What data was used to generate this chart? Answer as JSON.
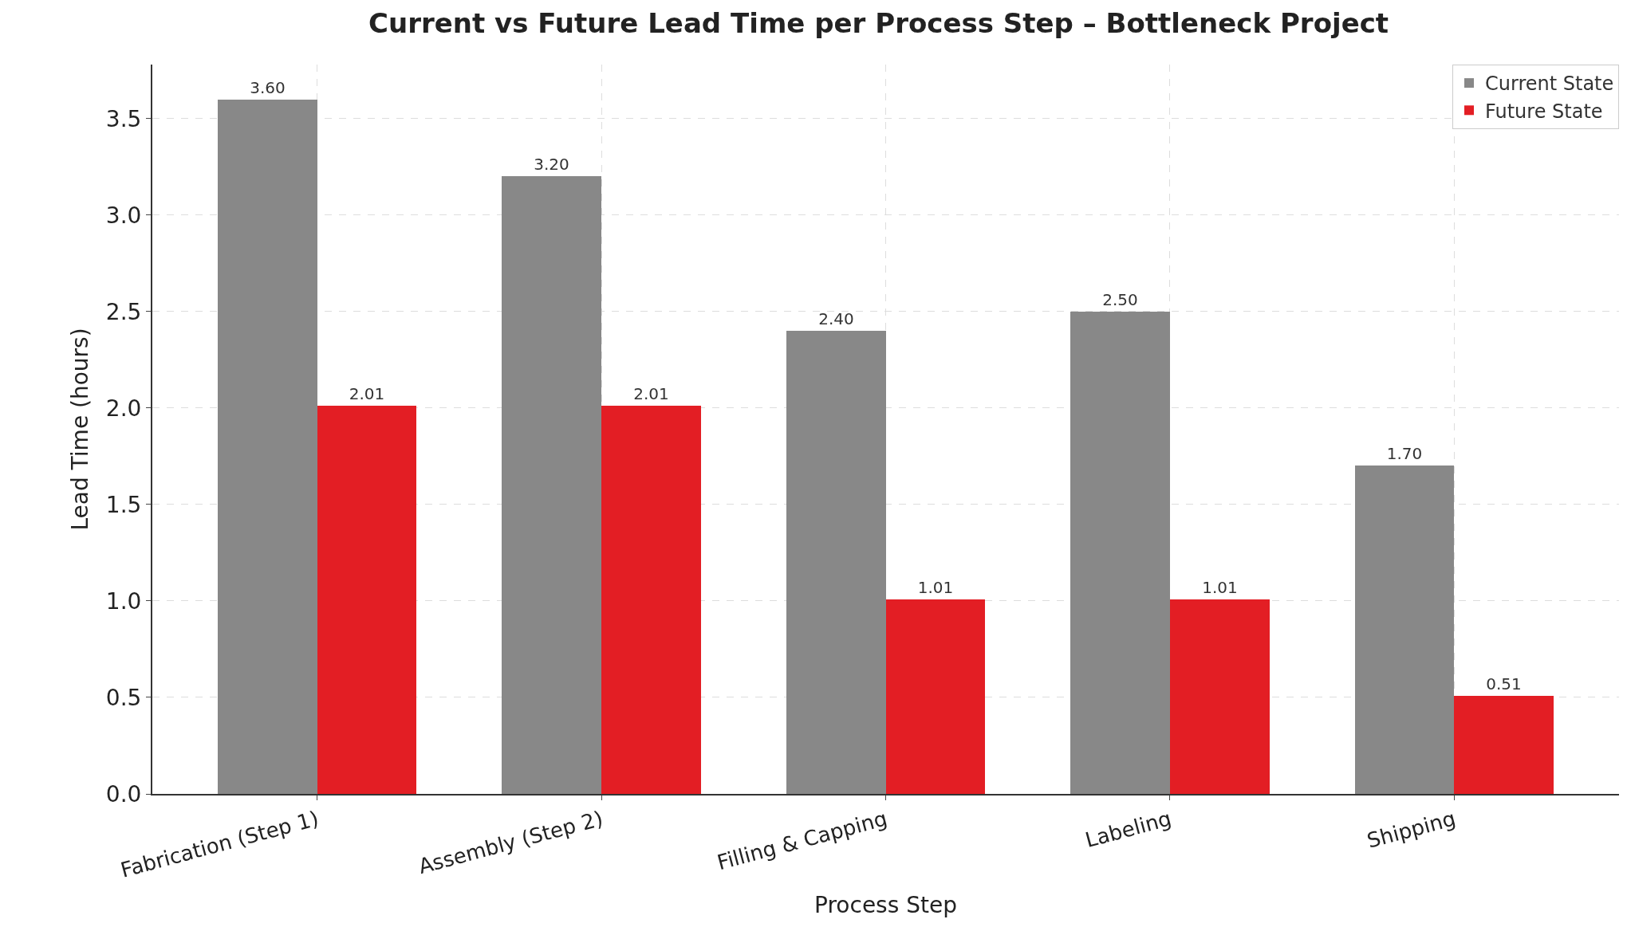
{
  "chart_data": {
    "type": "bar",
    "title": "Current vs Future Lead Time per Process Step – Bottleneck Project",
    "xlabel": "Process Step",
    "ylabel": "Lead Time (hours)",
    "categories": [
      "Fabrication (Step 1)",
      "Assembly (Step 2)",
      "Filling & Capping",
      "Labeling",
      "Shipping"
    ],
    "series": [
      {
        "name": "Current State",
        "color": "#888888",
        "values": [
          3.6,
          3.2,
          2.4,
          2.5,
          1.7
        ],
        "value_labels": [
          "3.60",
          "3.20",
          "2.40",
          "2.50",
          "1.70"
        ]
      },
      {
        "name": "Future State",
        "color": "#e31e24",
        "values": [
          2.01,
          2.01,
          1.01,
          1.01,
          0.51
        ],
        "value_labels": [
          "2.01",
          "2.01",
          "1.01",
          "1.01",
          "0.51"
        ]
      }
    ],
    "ylim": [
      0,
      3.78
    ],
    "yticks": [
      {
        "value": 0,
        "label": "0.0"
      },
      {
        "value": 0.5,
        "label": "0.5"
      },
      {
        "value": 1,
        "label": "1.0"
      },
      {
        "value": 1.5,
        "label": "1.5"
      },
      {
        "value": 2,
        "label": "2.0"
      },
      {
        "value": 2.5,
        "label": "2.5"
      },
      {
        "value": 3,
        "label": "3.0"
      },
      {
        "value": 3.5,
        "label": "3.5"
      }
    ],
    "grid": true,
    "legend": "top right"
  }
}
